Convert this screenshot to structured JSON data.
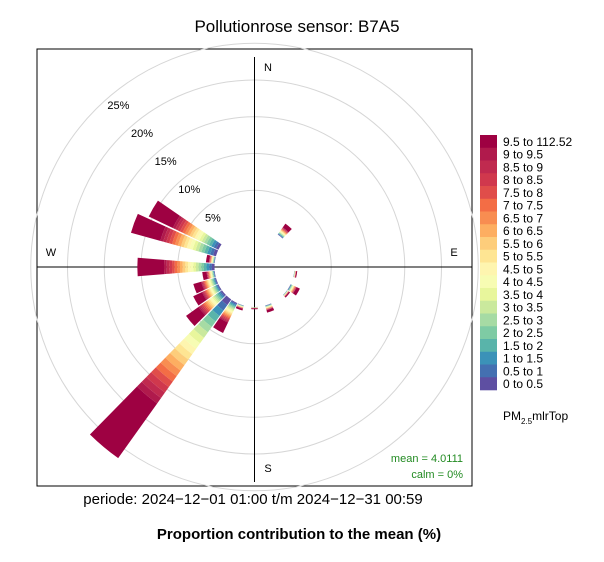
{
  "chart_data": {
    "type": "polar-stacked-bar",
    "title": "Pollutionrose sensor: B7A5",
    "period_label": "periode: 2024−12−01 01:00 t/m 2024−12−31 00:59",
    "caption": "Proportion contribution to the mean (%)",
    "directions": [
      "N",
      "E",
      "S",
      "W"
    ],
    "ring_labels": [
      "5%",
      "10%",
      "15%",
      "20%",
      "25%"
    ],
    "ring_values": [
      5,
      10,
      15,
      20,
      25
    ],
    "legend_title": "PM2.5mlrTop",
    "legend_title_parts": {
      "main": "PM",
      "sub": "2.5",
      "rest": "mlrTop"
    },
    "mean_label": "mean = 4.0111",
    "calm_label": "calm = 0%",
    "bins": [
      {
        "label": "0 to 0.5",
        "color": "#5E4FA2"
      },
      {
        "label": "0.5 to 1",
        "color": "#4470B1"
      },
      {
        "label": "1 to 1.5",
        "color": "#3B92B8"
      },
      {
        "label": "1.5 to 2",
        "color": "#59B4AA"
      },
      {
        "label": "2 to 2.5",
        "color": "#7ECBA4"
      },
      {
        "label": "2.5 to 3",
        "color": "#A6DBA4"
      },
      {
        "label": "3 to 3.5",
        "color": "#CAE99D"
      },
      {
        "label": "3.5 to 4",
        "color": "#E8F69C"
      },
      {
        "label": "4 to 4.5",
        "color": "#F7FCB3"
      },
      {
        "label": "4.5 to 5",
        "color": "#FEF5AF"
      },
      {
        "label": "5 to 5.5",
        "color": "#FEE593"
      },
      {
        "label": "5.5 to 6",
        "color": "#FDCD7B"
      },
      {
        "label": "6 to 6.5",
        "color": "#FDAE61"
      },
      {
        "label": "6.5 to 7",
        "color": "#F88D51"
      },
      {
        "label": "7 to 7.5",
        "color": "#F36D45"
      },
      {
        "label": "7.5 to 8",
        "color": "#E04D4A"
      },
      {
        "label": "8 to 8.5",
        "color": "#D0384D"
      },
      {
        "label": "8.5 to 9",
        "color": "#C02A4F"
      },
      {
        "label": "9 to 9.5",
        "color": "#B01A4C"
      },
      {
        "label": "9.5 to 112.52",
        "color": "#9E0142"
      }
    ],
    "sectors": [
      {
        "dir": 40,
        "total": 1.8
      },
      {
        "dir": 100,
        "total": 0.4
      },
      {
        "dir": 120,
        "total": 1.4
      },
      {
        "dir": 130,
        "total": 0.5
      },
      {
        "dir": 160,
        "total": 1.0
      },
      {
        "dir": 180,
        "total": 0.3
      },
      {
        "dir": 200,
        "total": 0.7
      },
      {
        "dir": 210,
        "total": 4.5
      },
      {
        "dir": 220,
        "total": 26.5
      },
      {
        "dir": 230,
        "total": 6.0
      },
      {
        "dir": 240,
        "total": 3.8
      },
      {
        "dir": 250,
        "total": 3.2
      },
      {
        "dir": 260,
        "total": 1.7
      },
      {
        "dir": 270,
        "total": 10.5
      },
      {
        "dir": 280,
        "total": 1.2
      },
      {
        "dir": 290,
        "total": 12.0
      },
      {
        "dir": 300,
        "total": 10.5
      }
    ]
  }
}
